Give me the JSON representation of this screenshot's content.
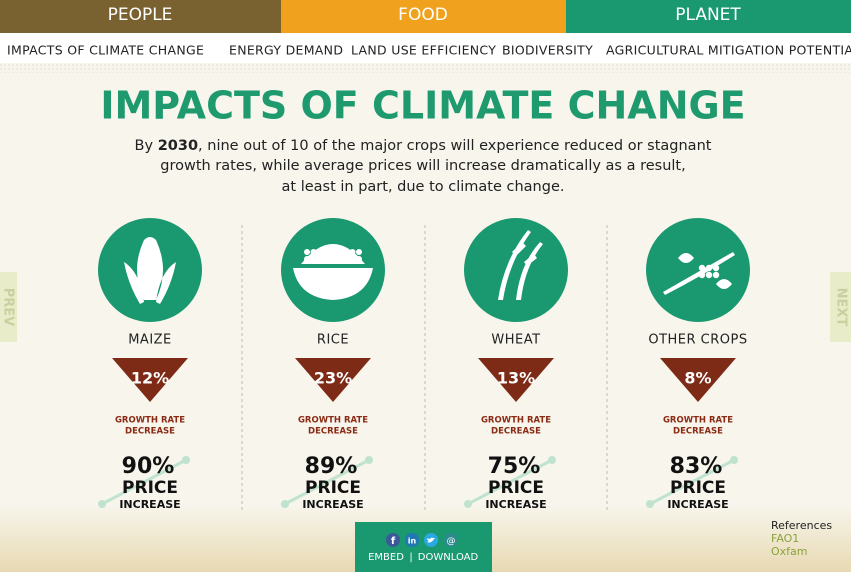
{
  "tabs": [
    "PEOPLE",
    "FOOD",
    "PLANET"
  ],
  "subnav": [
    "IMPACTS OF CLIMATE CHANGE",
    "ENERGY DEMAND",
    "LAND USE EFFICIENCY",
    "BIODIVERSITY",
    "AGRICULTURAL MITIGATION POTENTIAL"
  ],
  "side": {
    "prev": "PREV",
    "next": "NEXT"
  },
  "title": "IMPACTS OF CLIMATE CHANGE",
  "intro": {
    "lead": "By ",
    "year": "2030",
    "line1": ", nine out of 10 of the major crops will experience reduced or stagnant",
    "line2": "growth rates, while average prices will increase dramatically as a result,",
    "line3": "at least in part, due to climate change."
  },
  "crops": [
    {
      "name": "MAIZE",
      "growth": "12%",
      "growth_label": [
        "GROWTH RATE",
        "DECREASE"
      ],
      "price": "90%",
      "price_label": [
        "PRICE",
        "INCREASE"
      ]
    },
    {
      "name": "RICE",
      "growth": "23%",
      "growth_label": [
        "GROWTH RATE",
        "DECREASE"
      ],
      "price": "89%",
      "price_label": [
        "PRICE",
        "INCREASE"
      ]
    },
    {
      "name": "WHEAT",
      "growth": "13%",
      "growth_label": [
        "GROWTH RATE",
        "DECREASE"
      ],
      "price": "75%",
      "price_label": [
        "PRICE",
        "INCREASE"
      ]
    },
    {
      "name": "OTHER CROPS",
      "growth": "8%",
      "growth_label": [
        "GROWTH RATE",
        "DECREASE"
      ],
      "price": "83%",
      "price_label": [
        "PRICE",
        "INCREASE"
      ]
    }
  ],
  "footer": {
    "social": [
      "f",
      "in",
      "@"
    ],
    "embed": "EMBED",
    "sep": "|",
    "download": "DOWNLOAD"
  },
  "references": {
    "title": "References",
    "links": [
      "FAO1",
      "Oxfam"
    ]
  }
}
